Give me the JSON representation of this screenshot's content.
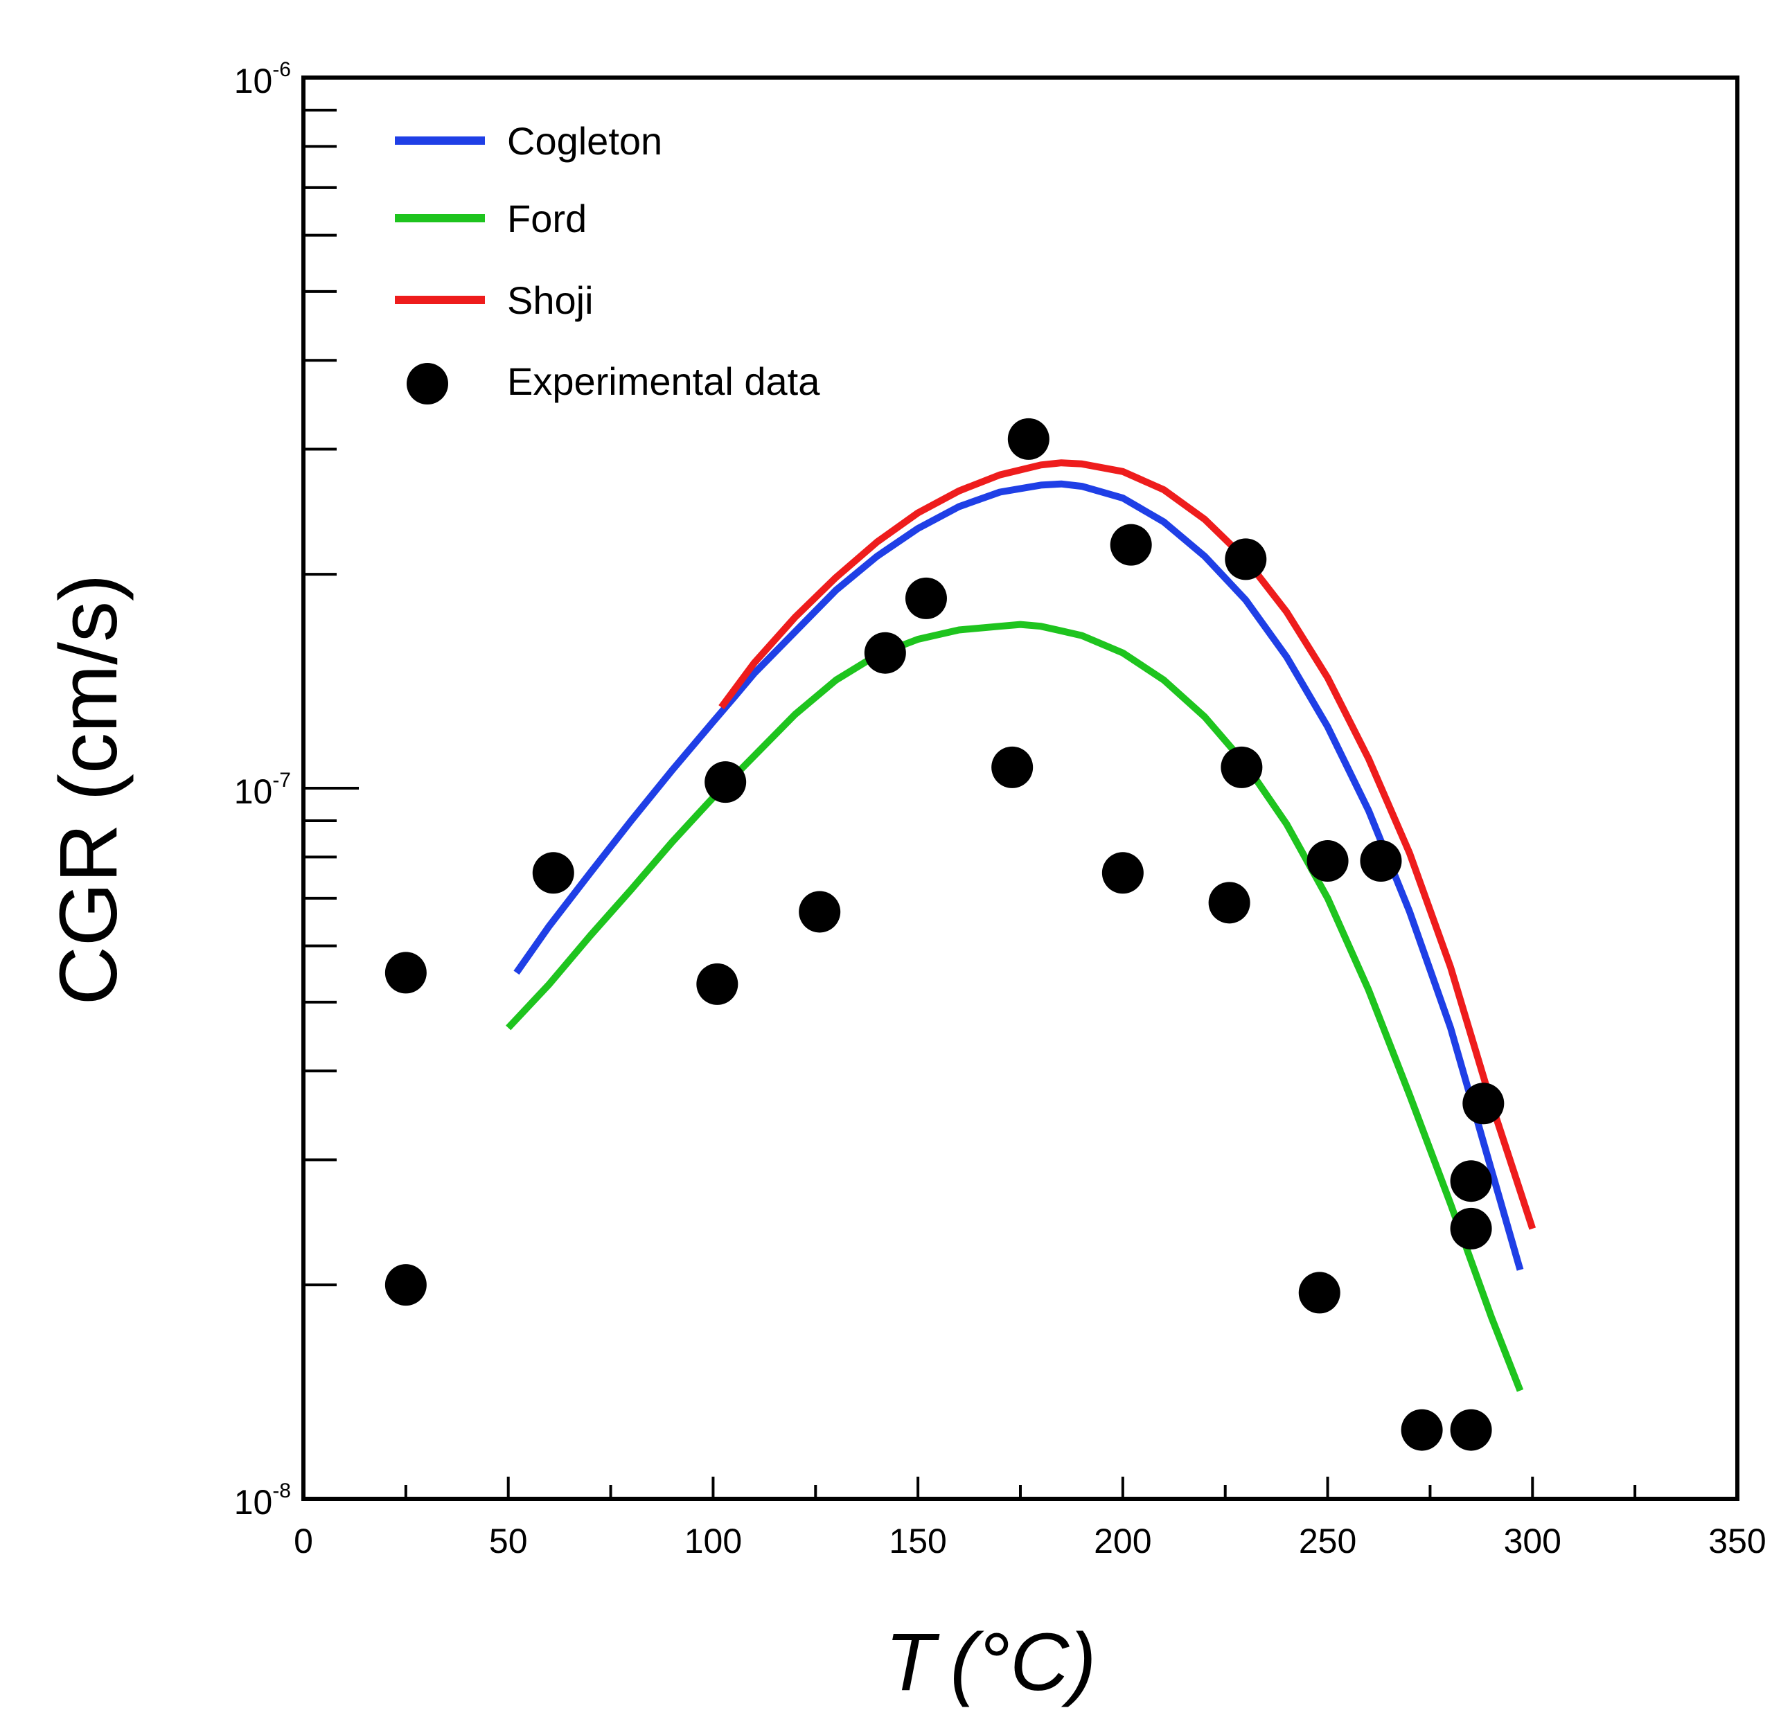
{
  "chart_data": {
    "type": "line",
    "xlabel_var": "T",
    "xlabel_unit": "(°C)",
    "ylabel": "CGR (cm/s)",
    "xlim": [
      0,
      350
    ],
    "ylim": [
      1e-08,
      1e-06
    ],
    "yscale": "log",
    "x_ticks": [
      0,
      50,
      100,
      150,
      200,
      250,
      300,
      350
    ],
    "y_ticks": [
      {
        "value": 1e-08,
        "base": "10",
        "exp": "-8"
      },
      {
        "value": 1e-07,
        "base": "10",
        "exp": "-7"
      },
      {
        "value": 1e-06,
        "base": "10",
        "exp": "-6"
      }
    ],
    "grid": false,
    "legend_position": "top-left",
    "series": [
      {
        "name": "Cogleton",
        "type": "line",
        "color": "#1f3fe6",
        "x": [
          52,
          60,
          70,
          80,
          90,
          100,
          105,
          110,
          120,
          130,
          140,
          150,
          160,
          170,
          180,
          185,
          190,
          200,
          210,
          220,
          230,
          240,
          250,
          260,
          270,
          280,
          290,
          297
        ],
        "y": [
          5.5e-08,
          6.4e-08,
          7.6e-08,
          9e-08,
          1.06e-07,
          1.24e-07,
          1.34e-07,
          1.45e-07,
          1.66e-07,
          1.9e-07,
          2.12e-07,
          2.32e-07,
          2.49e-07,
          2.61e-07,
          2.67e-07,
          2.68e-07,
          2.66e-07,
          2.56e-07,
          2.37e-07,
          2.12e-07,
          1.84e-07,
          1.53e-07,
          1.22e-07,
          9.3e-08,
          6.7e-08,
          4.6e-08,
          2.9e-08,
          2.1e-08
        ]
      },
      {
        "name": "Ford",
        "type": "line",
        "color": "#1ec41e",
        "x": [
          50,
          60,
          70,
          80,
          90,
          100,
          110,
          120,
          130,
          140,
          150,
          160,
          170,
          175,
          180,
          190,
          200,
          210,
          220,
          230,
          240,
          250,
          260,
          270,
          280,
          290,
          297
        ],
        "y": [
          4.6e-08,
          5.3e-08,
          6.2e-08,
          7.2e-08,
          8.4e-08,
          9.7e-08,
          1.11e-07,
          1.27e-07,
          1.42e-07,
          1.54e-07,
          1.62e-07,
          1.67e-07,
          1.69e-07,
          1.7e-07,
          1.69e-07,
          1.64e-07,
          1.55e-07,
          1.42e-07,
          1.26e-07,
          1.08e-07,
          8.9e-08,
          7e-08,
          5.2e-08,
          3.7e-08,
          2.6e-08,
          1.8e-08,
          1.42e-08
        ]
      },
      {
        "name": "Shoji",
        "type": "line",
        "color": "#ee1c1c",
        "x": [
          102,
          110,
          120,
          130,
          140,
          150,
          160,
          170,
          180,
          185,
          190,
          200,
          210,
          220,
          230,
          240,
          250,
          260,
          270,
          280,
          290,
          300
        ],
        "y": [
          1.3e-07,
          1.5e-07,
          1.74e-07,
          1.98e-07,
          2.22e-07,
          2.44e-07,
          2.62e-07,
          2.76e-07,
          2.85e-07,
          2.87e-07,
          2.86e-07,
          2.79e-07,
          2.63e-07,
          2.39e-07,
          2.1e-07,
          1.77e-07,
          1.43e-07,
          1.1e-07,
          8.1e-08,
          5.6e-08,
          3.6e-08,
          2.4e-08
        ]
      },
      {
        "name": "Experimental data",
        "type": "scatter",
        "color": "#000000",
        "x": [
          25,
          25,
          61,
          101,
          103,
          126,
          142,
          152,
          173,
          177,
          200,
          202,
          226,
          229,
          230,
          248,
          250,
          263,
          273,
          285,
          285,
          285,
          288
        ],
        "y": [
          5.5e-08,
          2e-08,
          7.6e-08,
          5.3e-08,
          1.02e-07,
          6.7e-08,
          1.55e-07,
          1.85e-07,
          1.07e-07,
          3.1e-07,
          7.6e-08,
          2.2e-07,
          6.9e-08,
          1.07e-07,
          2.1e-07,
          1.95e-08,
          7.9e-08,
          7.9e-08,
          1.25e-08,
          1.25e-08,
          2.4e-08,
          2.8e-08,
          3.6e-08
        ]
      }
    ]
  }
}
